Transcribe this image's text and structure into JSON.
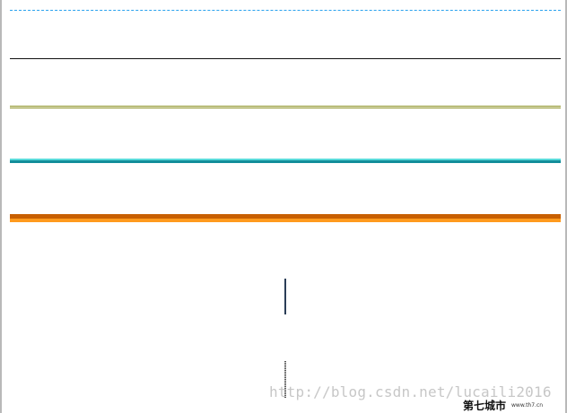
{
  "lines": [
    {
      "style": "dashed",
      "color": "#2aa2ee"
    },
    {
      "style": "solid",
      "color": "#111111"
    },
    {
      "style": "double",
      "color": "#8a8f1e"
    },
    {
      "style": "groove",
      "colors": [
        "#59dada",
        "#138d9a"
      ]
    },
    {
      "style": "ridge",
      "colors": [
        "#c85f00",
        "#ff9a1e"
      ]
    }
  ],
  "vertical_lines": [
    {
      "style": "solid",
      "color": "#2b3e57"
    },
    {
      "style": "dotted",
      "color": "#555555"
    }
  ],
  "watermark": {
    "url": "http://blog.csdn.net/lucaili2016",
    "logo_text": "第七城市",
    "logo_url": "www.th7.cn"
  }
}
